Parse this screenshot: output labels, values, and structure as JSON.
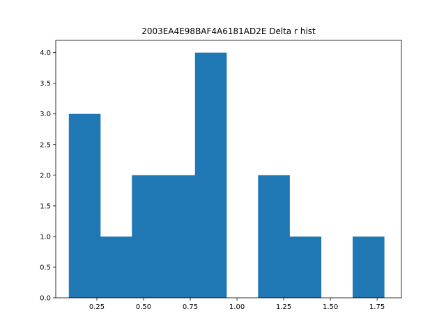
{
  "chart_data": {
    "type": "bar",
    "title": "2003EA4E98BAF4A6181AD2E Delta r hist",
    "xlabel": "",
    "ylabel": "",
    "xlim": [
      0.03,
      1.88
    ],
    "ylim": [
      0,
      4.2
    ],
    "bin_edges": [
      0.1,
      0.2688,
      0.4376,
      0.6064,
      0.7752,
      0.944,
      1.1128,
      1.2816,
      1.4504,
      1.6192,
      1.788
    ],
    "values": [
      3,
      1,
      2,
      2,
      4,
      0,
      2,
      1,
      0,
      1
    ],
    "x_ticks": [
      0.25,
      0.5,
      0.75,
      1.0,
      1.25,
      1.5,
      1.75
    ],
    "x_tick_labels": [
      "0.25",
      "0.50",
      "0.75",
      "1.00",
      "1.25",
      "1.50",
      "1.75"
    ],
    "y_ticks": [
      0,
      0.5,
      1.0,
      1.5,
      2.0,
      2.5,
      3.0,
      3.5,
      4.0
    ],
    "y_tick_labels": [
      "0.0",
      "0.5",
      "1.0",
      "1.5",
      "2.0",
      "2.5",
      "3.0",
      "3.5",
      "4.0"
    ],
    "bar_color": "#1f77b4",
    "grid": false,
    "legend": "none"
  }
}
